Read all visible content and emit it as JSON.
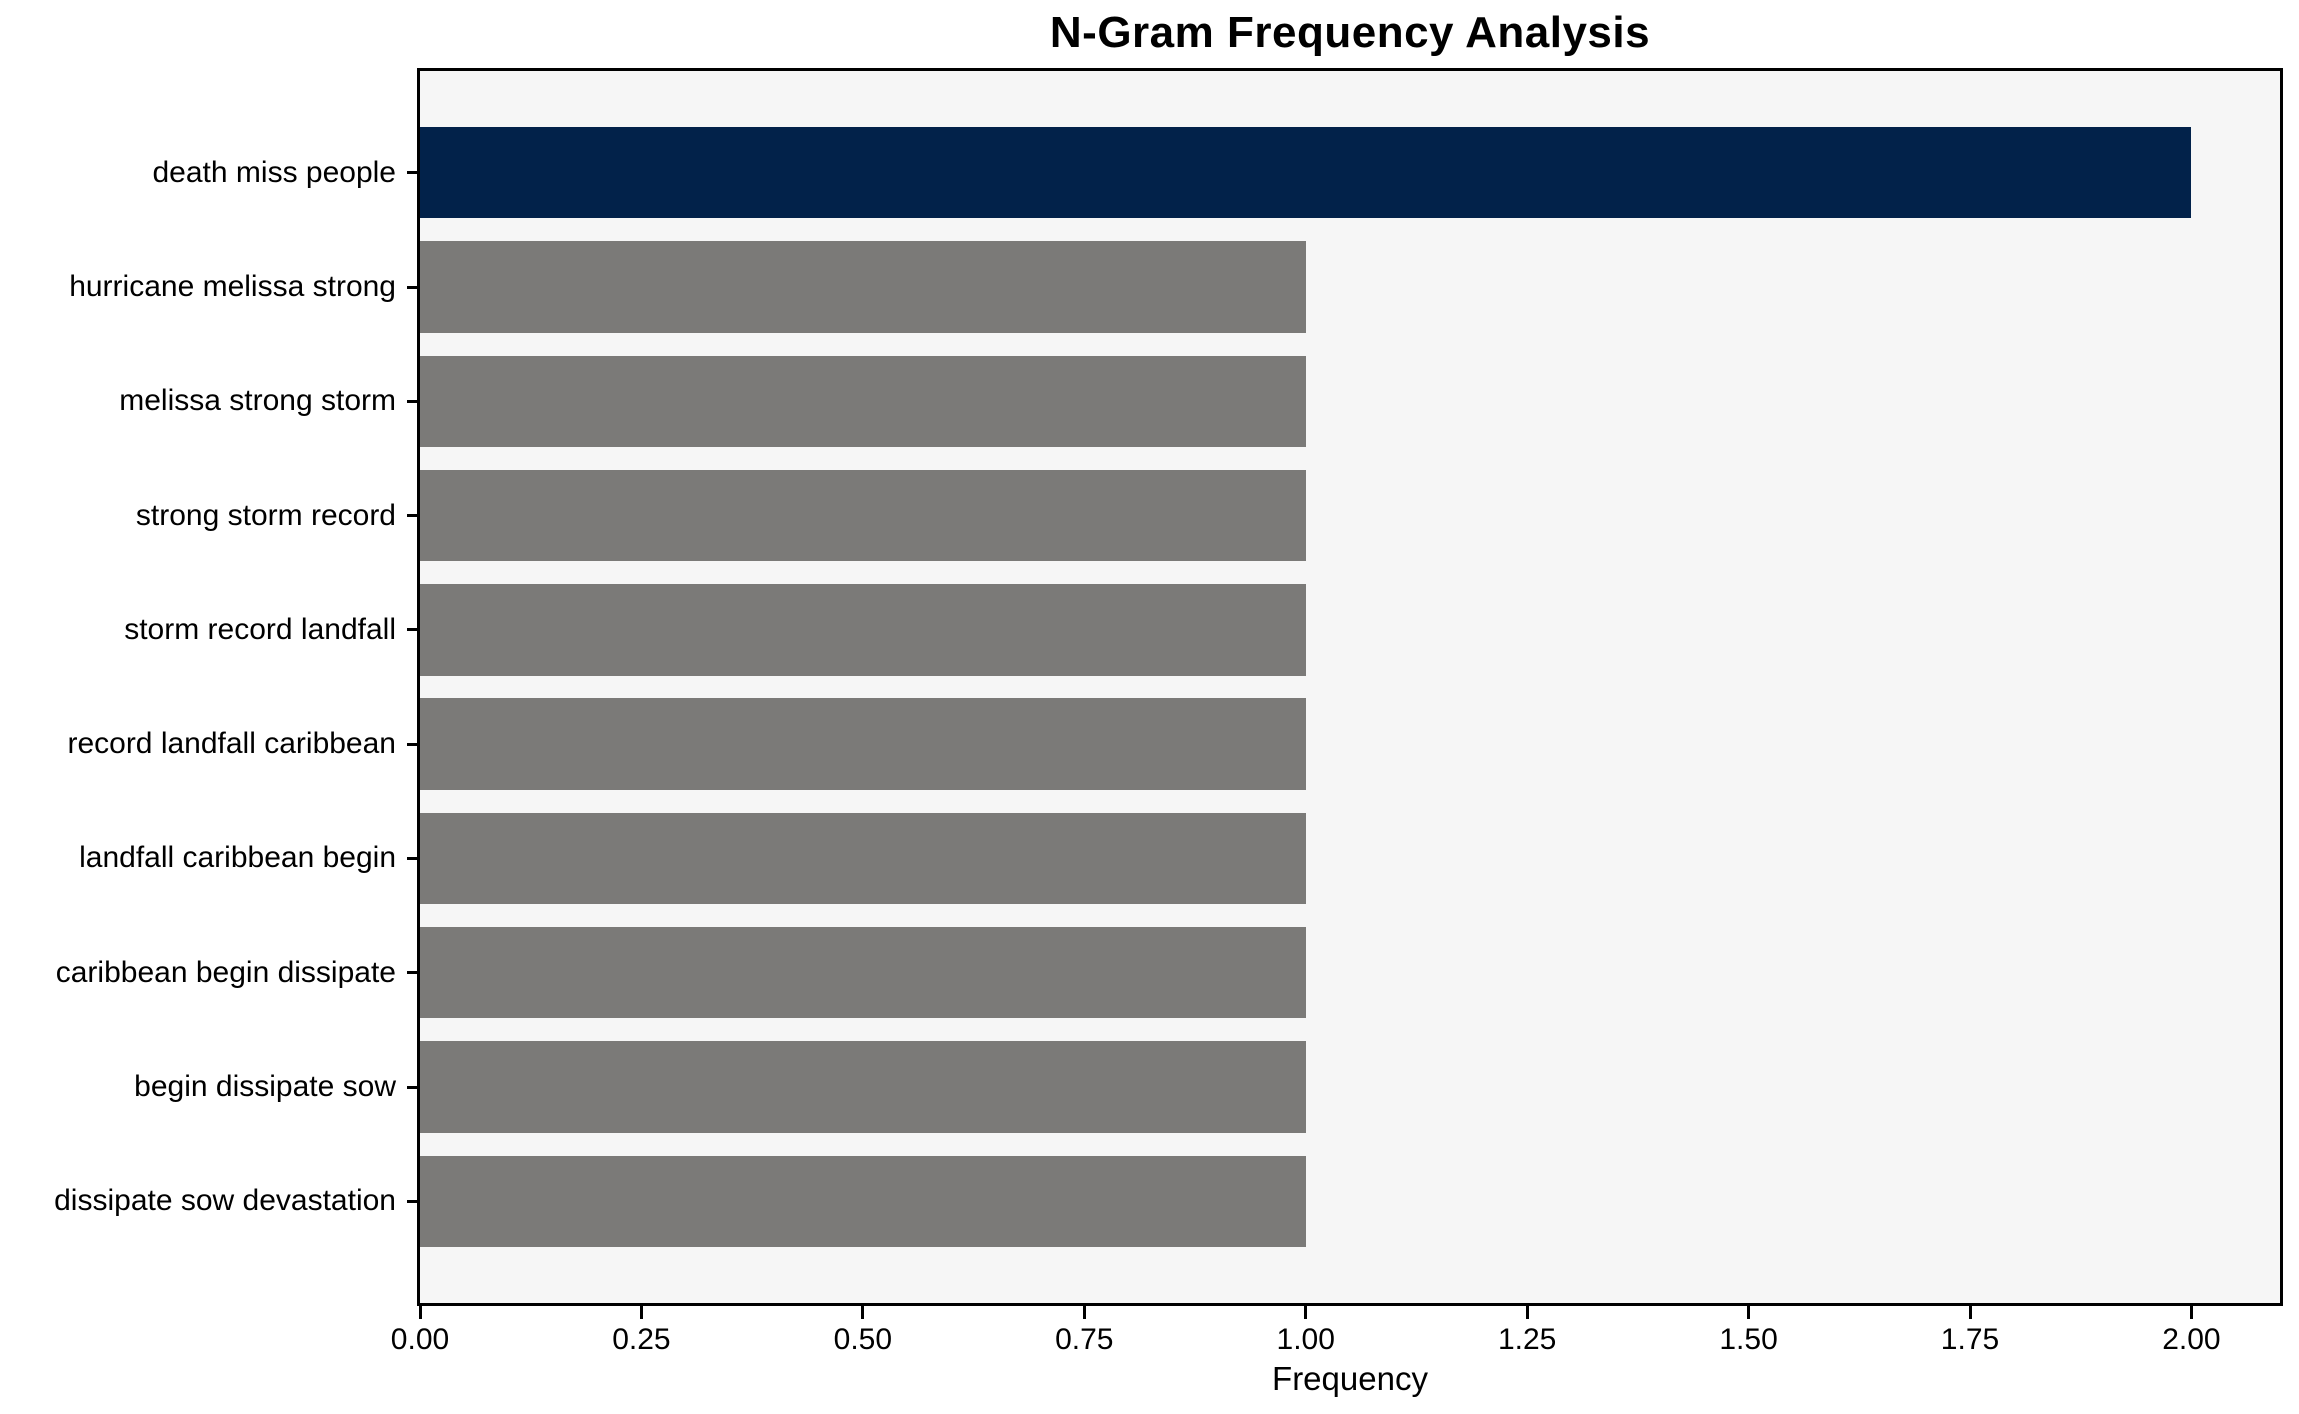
{
  "chart_data": {
    "type": "bar",
    "orientation": "horizontal",
    "title": "N-Gram Frequency Analysis",
    "xlabel": "Frequency",
    "ylabel": "",
    "categories": [
      "death miss people",
      "hurricane melissa strong",
      "melissa strong storm",
      "strong storm record",
      "storm record landfall",
      "record landfall caribbean",
      "landfall caribbean begin",
      "caribbean begin dissipate",
      "begin dissipate sow",
      "dissipate sow devastation"
    ],
    "values": [
      2,
      1,
      1,
      1,
      1,
      1,
      1,
      1,
      1,
      1
    ],
    "bar_colors": [
      "#02224a",
      "#7b7a78",
      "#7b7a78",
      "#7b7a78",
      "#7b7a78",
      "#7b7a78",
      "#7b7a78",
      "#7b7a78",
      "#7b7a78",
      "#7b7a78"
    ],
    "x_tick_labels": [
      "0.00",
      "0.25",
      "0.50",
      "0.75",
      "1.00",
      "1.25",
      "1.50",
      "1.75",
      "2.00"
    ],
    "x_tick_values": [
      0,
      0.25,
      0.5,
      0.75,
      1.0,
      1.25,
      1.5,
      1.75,
      2.0
    ],
    "xlim": [
      0,
      2.1
    ],
    "grid": false,
    "legend_position": "none",
    "colors": {
      "highlight_bar": "#02224a",
      "default_bar": "#7b7a78",
      "plot_background": "#f6f6f6",
      "figure_background": "#ffffff",
      "spine": "#000000",
      "text": "#000000"
    }
  }
}
